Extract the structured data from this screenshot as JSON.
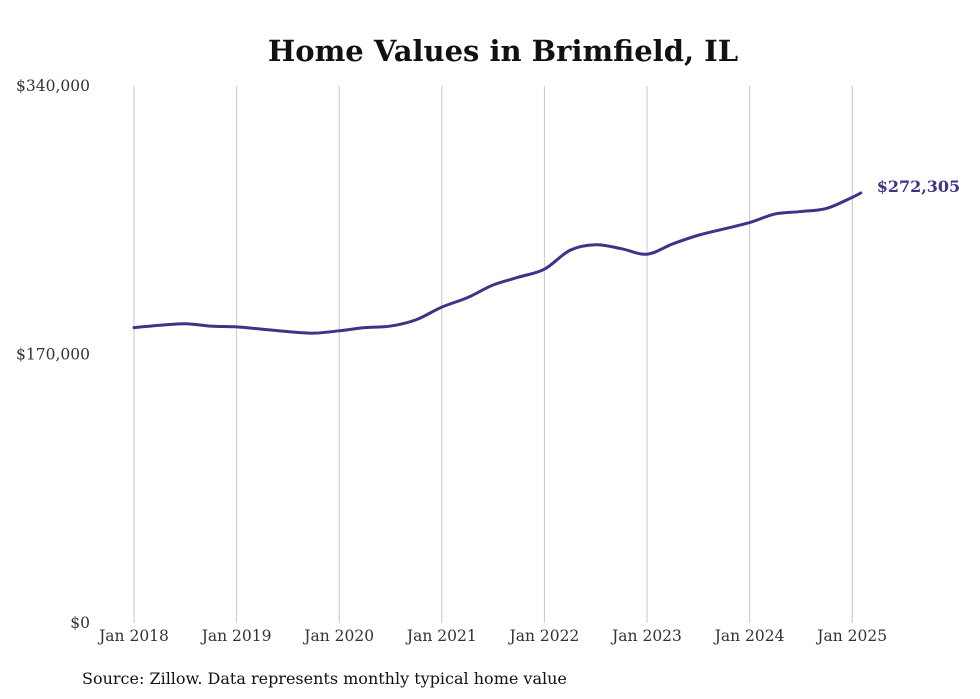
{
  "chart_data": {
    "type": "line",
    "title": "Home Values in Brimfield, IL",
    "xlabel": "",
    "ylabel": "",
    "source": "Source: Zillow. Data represents monthly typical home value",
    "y_ticks": [
      {
        "value": 0,
        "label": "$0"
      },
      {
        "value": 170000,
        "label": "$170,000"
      },
      {
        "value": 340000,
        "label": "$340,000"
      }
    ],
    "ylim": [
      0,
      340000
    ],
    "x_ticks": [
      {
        "value": "2018-01",
        "label": "Jan 2018"
      },
      {
        "value": "2019-01",
        "label": "Jan 2019"
      },
      {
        "value": "2020-01",
        "label": "Jan 2020"
      },
      {
        "value": "2021-01",
        "label": "Jan 2021"
      },
      {
        "value": "2022-01",
        "label": "Jan 2022"
      },
      {
        "value": "2023-01",
        "label": "Jan 2023"
      },
      {
        "value": "2024-01",
        "label": "Jan 2024"
      },
      {
        "value": "2025-01",
        "label": "Jan 2025"
      }
    ],
    "xlim": [
      "2018-01",
      "2025-02"
    ],
    "grid": {
      "vertical": true,
      "horizontal": false
    },
    "line_color": "#3d3489",
    "end_label": "$272,305",
    "series": [
      {
        "x": [
          "2018-01",
          "2018-04",
          "2018-07",
          "2018-10",
          "2019-01",
          "2019-04",
          "2019-07",
          "2019-10",
          "2020-01",
          "2020-04",
          "2020-07",
          "2020-10",
          "2021-01",
          "2021-04",
          "2021-07",
          "2021-10",
          "2022-01",
          "2022-04",
          "2022-07",
          "2022-10",
          "2023-01",
          "2023-04",
          "2023-07",
          "2023-10",
          "2024-01",
          "2024-04",
          "2024-07",
          "2024-10",
          "2025-01",
          "2025-02"
        ],
        "values": [
          187000,
          188500,
          189500,
          188000,
          187500,
          186000,
          184500,
          183500,
          185000,
          187000,
          188000,
          192000,
          200000,
          206000,
          214000,
          219000,
          224000,
          236000,
          239500,
          237000,
          233500,
          240000,
          245500,
          249500,
          253500,
          259000,
          260500,
          262500,
          269500,
          272305
        ]
      }
    ]
  }
}
